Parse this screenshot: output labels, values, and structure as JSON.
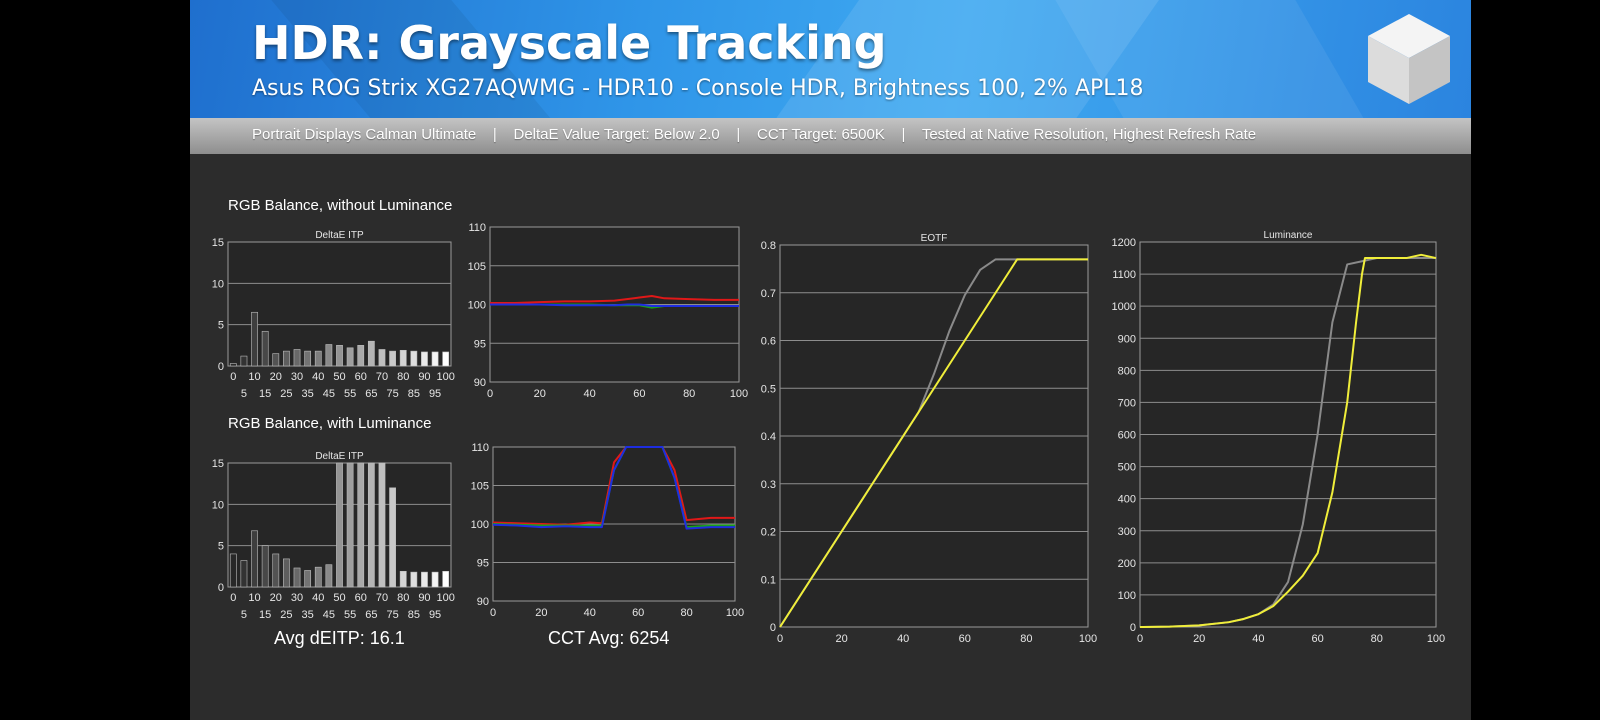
{
  "header": {
    "title": "HDR: Grayscale Tracking",
    "subtitle": "Asus ROG Strix XG27AQWMG - HDR10 - Console HDR, Brightness 100, 2% APL18",
    "info": [
      "Portrait Displays Calman Ultimate",
      "DeltaE Value Target: Below 2.0",
      "CCT Target: 6500K",
      "Tested at Native Resolution, Highest Refresh Rate"
    ]
  },
  "sections": {
    "without_luminance": "RGB Balance, without Luminance",
    "with_luminance": "RGB Balance, with Luminance"
  },
  "stats": {
    "avg_deitp": "Avg dEITP: 16.1",
    "cct_avg": "CCT Avg: 6254"
  },
  "colors": {
    "red": "#e01818",
    "green": "#1aa11a",
    "blue": "#1e2de0",
    "target": "#8a8a8a",
    "measured": "#f0ee3a"
  },
  "chart_data": [
    {
      "id": "deltae_without_luminance",
      "type": "bar",
      "title": "DeltaE ITP",
      "ylim": [
        0,
        15
      ],
      "yticks": [
        0,
        5,
        10,
        15
      ],
      "categories": [
        0,
        5,
        10,
        15,
        20,
        25,
        30,
        35,
        40,
        45,
        50,
        55,
        60,
        65,
        70,
        75,
        80,
        85,
        90,
        95,
        100
      ],
      "tick_labels_top": [
        "0",
        "10",
        "20",
        "30",
        "40",
        "50",
        "60",
        "70",
        "80",
        "90",
        "100"
      ],
      "tick_labels_bottom": [
        "5",
        "15",
        "25",
        "35",
        "45",
        "55",
        "65",
        "75",
        "85",
        "95"
      ],
      "values": [
        0.3,
        1.2,
        6.5,
        4.2,
        1.5,
        1.8,
        2.0,
        1.8,
        1.8,
        2.6,
        2.5,
        2.2,
        2.5,
        3.0,
        2.0,
        1.8,
        1.9,
        1.8,
        1.7,
        1.7,
        1.7
      ]
    },
    {
      "id": "rgb_without_luminance",
      "type": "line",
      "ylim": [
        90,
        110
      ],
      "yticks": [
        90,
        95,
        100,
        105,
        110
      ],
      "xlim": [
        0,
        100
      ],
      "xticks": [
        0,
        20,
        40,
        60,
        80,
        100
      ],
      "series": [
        {
          "color": "green",
          "x": [
            0,
            10,
            20,
            30,
            40,
            50,
            55,
            60,
            65,
            70,
            80,
            90,
            100
          ],
          "values": [
            100.1,
            100.0,
            100.0,
            100.0,
            100.0,
            99.9,
            99.9,
            99.9,
            99.6,
            99.8,
            99.8,
            99.8,
            99.8
          ]
        },
        {
          "color": "red",
          "x": [
            0,
            10,
            20,
            30,
            40,
            50,
            55,
            60,
            65,
            70,
            80,
            90,
            100
          ],
          "values": [
            100.2,
            100.2,
            100.3,
            100.4,
            100.4,
            100.5,
            100.7,
            100.9,
            101.1,
            100.8,
            100.7,
            100.6,
            100.6
          ]
        },
        {
          "color": "blue",
          "x": [
            0,
            10,
            20,
            30,
            40,
            50,
            55,
            60,
            65,
            70,
            80,
            90,
            100
          ],
          "values": [
            100.0,
            100.0,
            100.0,
            99.9,
            99.9,
            99.9,
            100.0,
            100.0,
            99.8,
            99.8,
            99.8,
            99.8,
            99.8
          ]
        }
      ]
    },
    {
      "id": "deltae_with_luminance",
      "type": "bar",
      "title": "DeltaE ITP",
      "ylim": [
        0,
        15
      ],
      "yticks": [
        0,
        5,
        10,
        15
      ],
      "categories": [
        0,
        5,
        10,
        15,
        20,
        25,
        30,
        35,
        40,
        45,
        50,
        55,
        60,
        65,
        70,
        75,
        80,
        85,
        90,
        95,
        100
      ],
      "tick_labels_top": [
        "0",
        "10",
        "20",
        "30",
        "40",
        "50",
        "60",
        "70",
        "80",
        "90",
        "100"
      ],
      "tick_labels_bottom": [
        "5",
        "15",
        "25",
        "35",
        "45",
        "55",
        "65",
        "75",
        "85",
        "95"
      ],
      "values": [
        4.0,
        3.2,
        6.8,
        5.0,
        4.0,
        3.4,
        2.3,
        2.0,
        2.4,
        2.7,
        15,
        15,
        15,
        15,
        15,
        12,
        1.9,
        1.8,
        1.8,
        1.8,
        1.9
      ]
    },
    {
      "id": "rgb_with_luminance",
      "type": "line",
      "ylim": [
        90,
        110
      ],
      "yticks": [
        90,
        95,
        100,
        105,
        110
      ],
      "xlim": [
        0,
        100
      ],
      "xticks": [
        0,
        20,
        40,
        60,
        80,
        100
      ],
      "series": [
        {
          "color": "red",
          "x": [
            0,
            10,
            20,
            30,
            40,
            45,
            50,
            55,
            60,
            65,
            70,
            75,
            80,
            90,
            100
          ],
          "values": [
            100.2,
            100.1,
            100.0,
            99.9,
            100.2,
            100.1,
            108,
            110,
            110,
            110,
            110,
            107,
            100.5,
            100.8,
            100.8
          ]
        },
        {
          "color": "green",
          "x": [
            0,
            10,
            20,
            30,
            40,
            45,
            50,
            55,
            60,
            65,
            70,
            75,
            80,
            90,
            100
          ],
          "values": [
            100.0,
            99.9,
            99.8,
            99.8,
            99.8,
            99.8,
            107,
            110,
            110,
            110,
            110,
            106,
            99.6,
            99.8,
            99.8
          ]
        },
        {
          "color": "blue",
          "x": [
            0,
            10,
            20,
            30,
            40,
            45,
            50,
            55,
            60,
            65,
            70,
            75,
            80,
            90,
            100
          ],
          "values": [
            99.9,
            99.8,
            99.6,
            99.7,
            99.6,
            99.6,
            107,
            110,
            110,
            110,
            110,
            106,
            99.4,
            99.6,
            99.6
          ]
        }
      ]
    },
    {
      "id": "eotf",
      "type": "line",
      "title": "EOTF",
      "ylim": [
        0,
        0.8
      ],
      "yticks": [
        0,
        0.1,
        0.2,
        0.3,
        0.4,
        0.5,
        0.6,
        0.7,
        0.8
      ],
      "ytick_labels": [
        "0",
        "0.1",
        "0.2",
        "0.3",
        "0.4",
        "0.5",
        "0.6",
        "0.7",
        "0.8"
      ],
      "xlim": [
        0,
        100
      ],
      "xticks": [
        0,
        20,
        40,
        60,
        80,
        100
      ],
      "series": [
        {
          "color": "target",
          "x": [
            0,
            10,
            20,
            30,
            40,
            45,
            50,
            55,
            60,
            65,
            70,
            75,
            80,
            90,
            100
          ],
          "values": [
            0.0,
            0.1,
            0.2,
            0.3,
            0.4,
            0.45,
            0.53,
            0.62,
            0.695,
            0.748,
            0.77,
            0.77,
            0.77,
            0.77,
            0.77
          ]
        },
        {
          "color": "measured",
          "x": [
            0,
            10,
            20,
            30,
            40,
            45,
            50,
            55,
            60,
            65,
            70,
            75,
            77,
            80,
            90,
            100
          ],
          "values": [
            0.0,
            0.1,
            0.2,
            0.3,
            0.4,
            0.45,
            0.5,
            0.55,
            0.6,
            0.65,
            0.7,
            0.75,
            0.77,
            0.77,
            0.77,
            0.77
          ]
        }
      ]
    },
    {
      "id": "luminance",
      "type": "line",
      "title": "Luminance",
      "ylim": [
        0,
        1200
      ],
      "yticks": [
        0,
        100,
        200,
        300,
        400,
        500,
        600,
        700,
        800,
        900,
        1000,
        1100,
        1200
      ],
      "xlim": [
        0,
        100
      ],
      "xticks": [
        0,
        20,
        40,
        60,
        80,
        100
      ],
      "series": [
        {
          "color": "target",
          "x": [
            0,
            10,
            20,
            30,
            35,
            40,
            45,
            50,
            55,
            60,
            65,
            70,
            75,
            80,
            90,
            100
          ],
          "values": [
            0,
            1,
            5,
            15,
            25,
            40,
            70,
            140,
            320,
            600,
            950,
            1130,
            1140,
            1150,
            1150,
            1150
          ]
        },
        {
          "color": "measured",
          "x": [
            0,
            10,
            20,
            30,
            35,
            40,
            45,
            50,
            55,
            60,
            65,
            70,
            73,
            75,
            76,
            80,
            90,
            95,
            100
          ],
          "values": [
            0,
            1,
            5,
            15,
            25,
            40,
            65,
            110,
            160,
            230,
            420,
            700,
            950,
            1100,
            1150,
            1150,
            1150,
            1160,
            1150
          ]
        }
      ]
    }
  ]
}
